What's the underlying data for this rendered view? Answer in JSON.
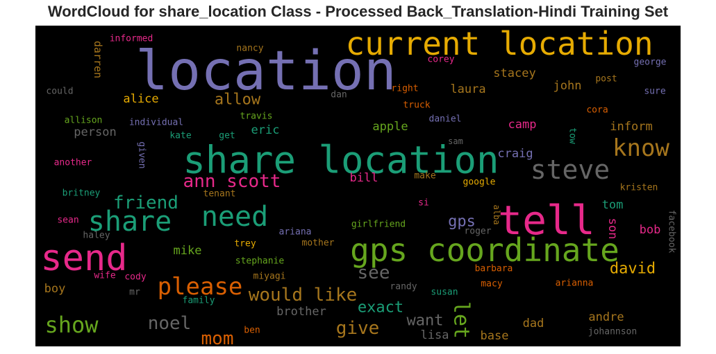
{
  "title": "WordCloud for share_location Class - Processed Back_Translation-Hindi Training Set",
  "chart_data": {
    "type": "wordcloud",
    "title": "WordCloud for share_location Class - Processed Back_Translation-Hindi Training Set",
    "background": "#000000",
    "words": [
      {
        "text": "location",
        "color": "#7570b3",
        "weight": 1.0
      },
      {
        "text": "share location",
        "color": "#1b9e77",
        "weight": 0.8
      },
      {
        "text": "current location",
        "color": "#e6ab02",
        "weight": 0.7
      },
      {
        "text": "tell",
        "color": "#e7298a",
        "weight": 0.76
      },
      {
        "text": "gps coordinate",
        "color": "#66a61e",
        "weight": 0.65
      },
      {
        "text": "send",
        "color": "#e7298a",
        "weight": 0.74
      },
      {
        "text": "share",
        "color": "#1b9e77",
        "weight": 0.58
      },
      {
        "text": "need",
        "color": "#1b9e77",
        "weight": 0.56
      },
      {
        "text": "steve",
        "color": "#666666",
        "weight": 0.53
      },
      {
        "text": "know",
        "color": "#a6761d",
        "weight": 0.46
      },
      {
        "text": "please",
        "color": "#d95f02",
        "weight": 0.48
      },
      {
        "text": "show",
        "color": "#66a61e",
        "weight": 0.46
      },
      {
        "text": "ann scott",
        "color": "#e7298a",
        "weight": 0.38
      },
      {
        "text": "friend",
        "color": "#1b9e77",
        "weight": 0.38
      },
      {
        "text": "would like",
        "color": "#a6761d",
        "weight": 0.38
      },
      {
        "text": "noel",
        "color": "#666666",
        "weight": 0.38
      },
      {
        "text": "mom",
        "color": "#d95f02",
        "weight": 0.37
      },
      {
        "text": "give",
        "color": "#a6761d",
        "weight": 0.37
      },
      {
        "text": "let",
        "color": "#66a61e",
        "weight": 0.4
      },
      {
        "text": "see",
        "color": "#666666",
        "weight": 0.35
      },
      {
        "text": "exact",
        "color": "#1b9e77",
        "weight": 0.3
      },
      {
        "text": "want",
        "color": "#666666",
        "weight": 0.3
      },
      {
        "text": "david",
        "color": "#e6ab02",
        "weight": 0.28
      },
      {
        "text": "gps",
        "color": "#7570b3",
        "weight": 0.28
      },
      {
        "text": "allow",
        "color": "#a6761d",
        "weight": 0.27
      },
      {
        "text": "stacey",
        "color": "#a6761d",
        "weight": 0.23
      },
      {
        "text": "laura",
        "color": "#a6761d",
        "weight": 0.23
      },
      {
        "text": "john",
        "color": "#a6761d",
        "weight": 0.23
      },
      {
        "text": "tom",
        "color": "#1b9e77",
        "weight": 0.23
      },
      {
        "text": "alice",
        "color": "#e6ab02",
        "weight": 0.23
      },
      {
        "text": "eric",
        "color": "#1b9e77",
        "weight": 0.23
      },
      {
        "text": "person",
        "color": "#666666",
        "weight": 0.23
      },
      {
        "text": "apple",
        "color": "#66a61e",
        "weight": 0.22
      },
      {
        "text": "camp",
        "color": "#e7298a",
        "weight": 0.22
      },
      {
        "text": "craig",
        "color": "#7570b3",
        "weight": 0.22
      },
      {
        "text": "inform",
        "color": "#a6761d",
        "weight": 0.22
      },
      {
        "text": "darren",
        "color": "#a6761d",
        "weight": 0.2
      },
      {
        "text": "bill",
        "color": "#e7298a",
        "weight": 0.22
      },
      {
        "text": "mike",
        "color": "#66a61e",
        "weight": 0.22
      },
      {
        "text": "boy",
        "color": "#a6761d",
        "weight": 0.22
      },
      {
        "text": "brother",
        "color": "#666666",
        "weight": 0.22
      },
      {
        "text": "dad",
        "color": "#a6761d",
        "weight": 0.22
      },
      {
        "text": "andre",
        "color": "#a6761d",
        "weight": 0.22
      },
      {
        "text": "lisa",
        "color": "#666666",
        "weight": 0.22
      },
      {
        "text": "base",
        "color": "#a6761d",
        "weight": 0.22
      },
      {
        "text": "son",
        "color": "#e7298a",
        "weight": 0.2
      },
      {
        "text": "bob",
        "color": "#e7298a",
        "weight": 0.2
      },
      {
        "text": "informed",
        "color": "#e7298a",
        "weight": 0.15
      },
      {
        "text": "nancy",
        "color": "#a6761d",
        "weight": 0.15
      },
      {
        "text": "corey",
        "color": "#e7298a",
        "weight": 0.15
      },
      {
        "text": "george",
        "color": "#7570b3",
        "weight": 0.15
      },
      {
        "text": "post",
        "color": "#a6761d",
        "weight": 0.15
      },
      {
        "text": "could",
        "color": "#666666",
        "weight": 0.15
      },
      {
        "text": "dan",
        "color": "#666666",
        "weight": 0.15
      },
      {
        "text": "right",
        "color": "#d95f02",
        "weight": 0.15
      },
      {
        "text": "sure",
        "color": "#7570b3",
        "weight": 0.15
      },
      {
        "text": "travis",
        "color": "#66a61e",
        "weight": 0.15
      },
      {
        "text": "truck",
        "color": "#d95f02",
        "weight": 0.15
      },
      {
        "text": "cora",
        "color": "#d95f02",
        "weight": 0.15
      },
      {
        "text": "allison",
        "color": "#66a61e",
        "weight": 0.15
      },
      {
        "text": "individual",
        "color": "#7570b3",
        "weight": 0.15
      },
      {
        "text": "daniel",
        "color": "#7570b3",
        "weight": 0.15
      },
      {
        "text": "kate",
        "color": "#1b9e77",
        "weight": 0.15
      },
      {
        "text": "get",
        "color": "#1b9e77",
        "weight": 0.15
      },
      {
        "text": "tow",
        "color": "#1b9e77",
        "weight": 0.14
      },
      {
        "text": "sam",
        "color": "#666666",
        "weight": 0.13
      },
      {
        "text": "given",
        "color": "#7570b3",
        "weight": 0.14
      },
      {
        "text": "another",
        "color": "#e7298a",
        "weight": 0.15
      },
      {
        "text": "make",
        "color": "#a6761d",
        "weight": 0.14
      },
      {
        "text": "google",
        "color": "#e6ab02",
        "weight": 0.15
      },
      {
        "text": "britney",
        "color": "#1b9e77",
        "weight": 0.15
      },
      {
        "text": "tenant",
        "color": "#a6761d",
        "weight": 0.15
      },
      {
        "text": "kristen",
        "color": "#a6761d",
        "weight": 0.15
      },
      {
        "text": "si",
        "color": "#e7298a",
        "weight": 0.14
      },
      {
        "text": "alba",
        "color": "#a6761d",
        "weight": 0.13
      },
      {
        "text": "sean",
        "color": "#e7298a",
        "weight": 0.15
      },
      {
        "text": "girlfriend",
        "color": "#66a61e",
        "weight": 0.15
      },
      {
        "text": "roger",
        "color": "#666666",
        "weight": 0.15
      },
      {
        "text": "facebook",
        "color": "#666666",
        "weight": 0.15
      },
      {
        "text": "haley",
        "color": "#666666",
        "weight": 0.15
      },
      {
        "text": "ariana",
        "color": "#7570b3",
        "weight": 0.15
      },
      {
        "text": "trey",
        "color": "#e6ab02",
        "weight": 0.15
      },
      {
        "text": "mother",
        "color": "#a6761d",
        "weight": 0.15
      },
      {
        "text": "stephanie",
        "color": "#66a61e",
        "weight": 0.15
      },
      {
        "text": "barbara",
        "color": "#d95f02",
        "weight": 0.15
      },
      {
        "text": "wife",
        "color": "#e7298a",
        "weight": 0.15
      },
      {
        "text": "cody",
        "color": "#e7298a",
        "weight": 0.15
      },
      {
        "text": "miyagi",
        "color": "#a6761d",
        "weight": 0.15
      },
      {
        "text": "randy",
        "color": "#666666",
        "weight": 0.15
      },
      {
        "text": "macy",
        "color": "#d95f02",
        "weight": 0.15
      },
      {
        "text": "arianna",
        "color": "#d95f02",
        "weight": 0.15
      },
      {
        "text": "mr",
        "color": "#666666",
        "weight": 0.15
      },
      {
        "text": "susan",
        "color": "#1b9e77",
        "weight": 0.15
      },
      {
        "text": "family",
        "color": "#1b9e77",
        "weight": 0.15
      },
      {
        "text": "ben",
        "color": "#d95f02",
        "weight": 0.15
      },
      {
        "text": "johannson",
        "color": "#666666",
        "weight": 0.15
      }
    ]
  }
}
